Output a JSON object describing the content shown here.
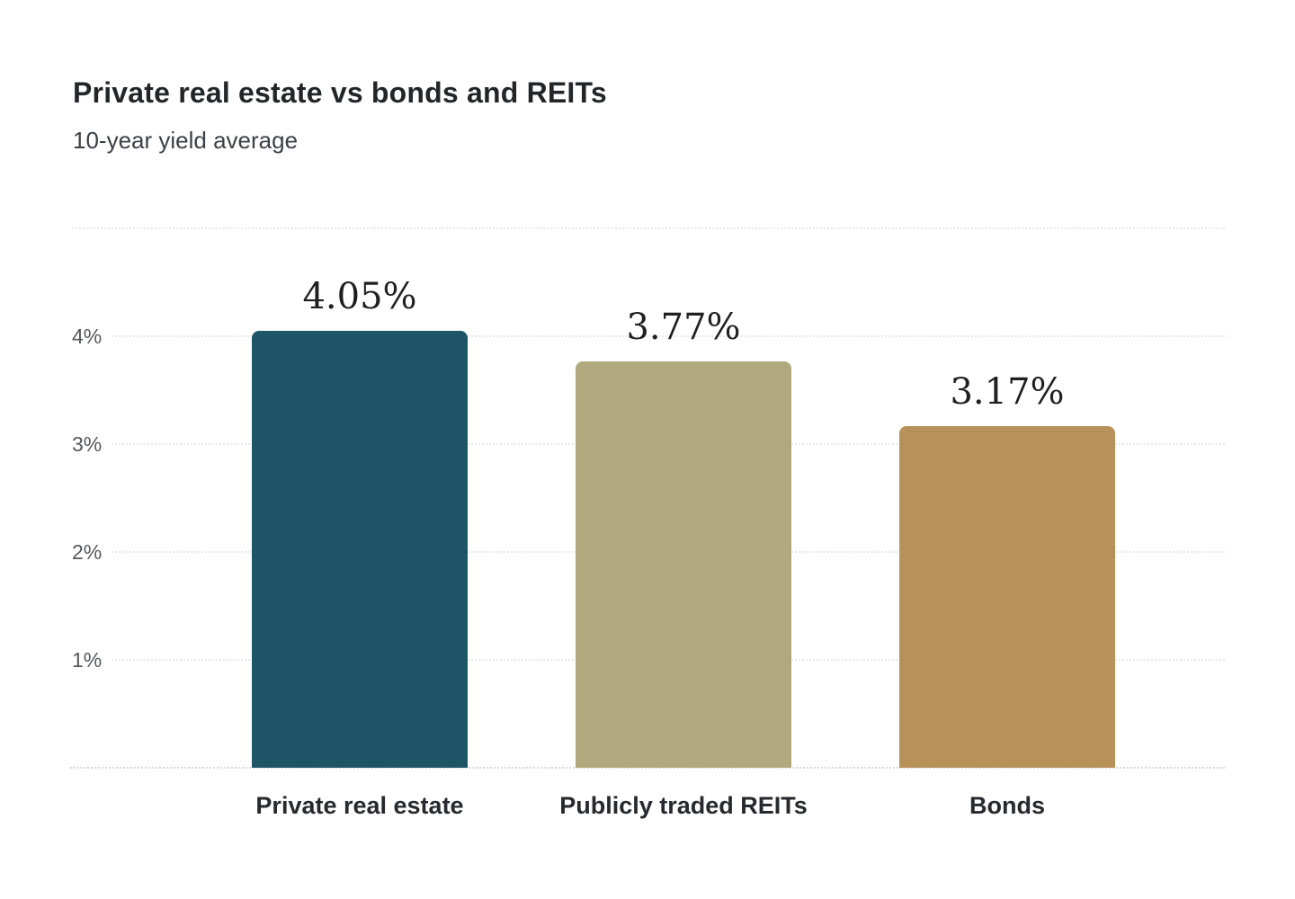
{
  "header": {
    "title": "Private real estate vs bonds and REITs",
    "subtitle": "10-year yield average"
  },
  "chart_data": {
    "type": "bar",
    "title": "Private real estate vs bonds and REITs",
    "subtitle": "10-year yield average",
    "categories": [
      "Private real estate",
      "Publicly traded REITs",
      "Bonds"
    ],
    "values": [
      4.05,
      3.77,
      3.17
    ],
    "value_labels": [
      "4.05%",
      "3.77%",
      "3.17%"
    ],
    "unit": "percent",
    "ylim": [
      0,
      5
    ],
    "ytick_labels_top_to_bottom": [
      "4%",
      "3%",
      "2%",
      "1%"
    ],
    "grid": "horizontal-dotted",
    "legend": "none",
    "bar_colors": [
      "#1d5566",
      "#b1a97e",
      "#b8915a"
    ],
    "background_color": "#ffffff",
    "gridline_color": "#e8e8e8",
    "baseline_color": "#d8d8d8"
  }
}
